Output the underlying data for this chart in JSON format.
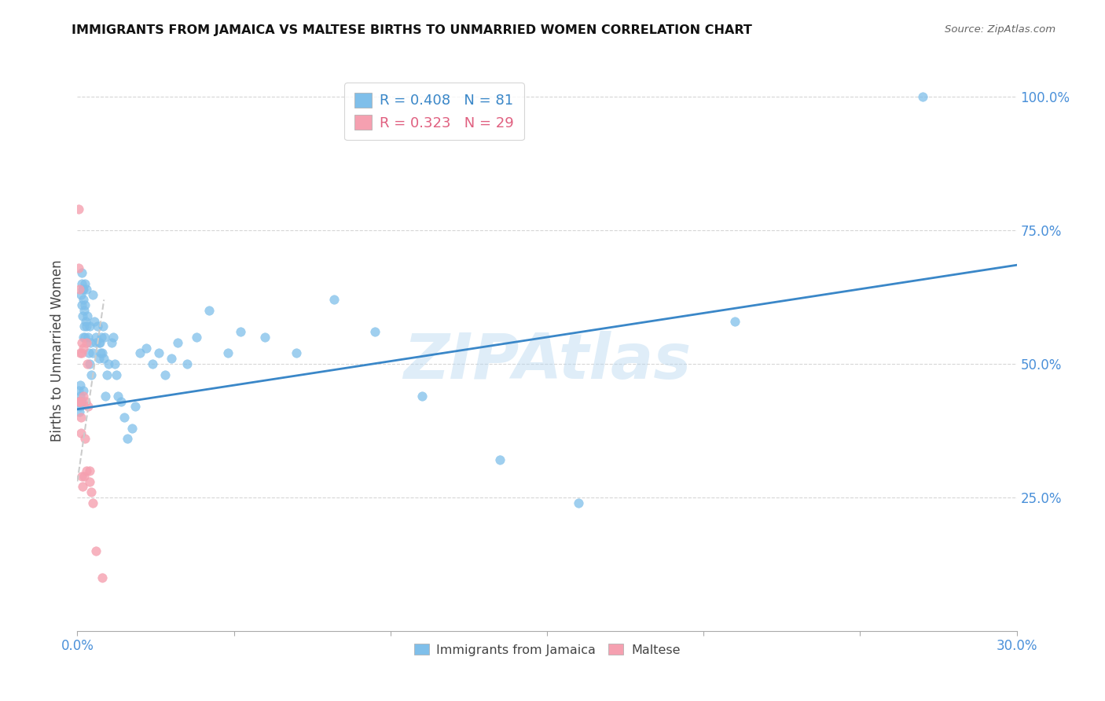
{
  "title": "IMMIGRANTS FROM JAMAICA VS MALTESE BIRTHS TO UNMARRIED WOMEN CORRELATION CHART",
  "source": "Source: ZipAtlas.com",
  "ylabel": "Births to Unmarried Women",
  "ytick_vals": [
    0.25,
    0.5,
    0.75,
    1.0
  ],
  "ytick_labels": [
    "25.0%",
    "50.0%",
    "75.0%",
    "100.0%"
  ],
  "legend_blue_r": "0.408",
  "legend_blue_n": "81",
  "legend_pink_r": "0.323",
  "legend_pink_n": "29",
  "legend_blue_label": "Immigrants from Jamaica",
  "legend_pink_label": "Maltese",
  "blue_color": "#7fbfea",
  "pink_color": "#f5a0b0",
  "blue_line_color": "#3a87c8",
  "pink_line_color": "#e06080",
  "tick_color": "#4a90d9",
  "watermark": "ZIPAtlas",
  "blue_scatter_x": [
    0.0003,
    0.0005,
    0.0007,
    0.0008,
    0.001,
    0.001,
    0.0012,
    0.0013,
    0.0014,
    0.0015,
    0.0015,
    0.0016,
    0.0017,
    0.0018,
    0.0019,
    0.002,
    0.002,
    0.0021,
    0.0022,
    0.0023,
    0.0024,
    0.0025,
    0.0026,
    0.0028,
    0.003,
    0.0032,
    0.0034,
    0.0036,
    0.0038,
    0.004,
    0.0042,
    0.0045,
    0.0048,
    0.005,
    0.0055,
    0.0058,
    0.006,
    0.0065,
    0.0068,
    0.007,
    0.0072,
    0.0075,
    0.0078,
    0.008,
    0.0082,
    0.0085,
    0.0088,
    0.009,
    0.0095,
    0.01,
    0.011,
    0.0115,
    0.012,
    0.0125,
    0.013,
    0.014,
    0.015,
    0.016,
    0.0175,
    0.0185,
    0.02,
    0.022,
    0.024,
    0.026,
    0.028,
    0.03,
    0.032,
    0.035,
    0.038,
    0.042,
    0.048,
    0.052,
    0.06,
    0.07,
    0.082,
    0.095,
    0.11,
    0.135,
    0.16,
    0.21,
    0.27
  ],
  "blue_scatter_y": [
    0.43,
    0.45,
    0.41,
    0.44,
    0.42,
    0.46,
    0.63,
    0.61,
    0.67,
    0.65,
    0.43,
    0.64,
    0.59,
    0.62,
    0.55,
    0.45,
    0.64,
    0.57,
    0.6,
    0.65,
    0.55,
    0.61,
    0.58,
    0.64,
    0.57,
    0.59,
    0.55,
    0.52,
    0.57,
    0.5,
    0.54,
    0.48,
    0.52,
    0.63,
    0.58,
    0.55,
    0.54,
    0.57,
    0.54,
    0.51,
    0.54,
    0.52,
    0.55,
    0.52,
    0.57,
    0.51,
    0.55,
    0.44,
    0.48,
    0.5,
    0.54,
    0.55,
    0.5,
    0.48,
    0.44,
    0.43,
    0.4,
    0.36,
    0.38,
    0.42,
    0.52,
    0.53,
    0.5,
    0.52,
    0.48,
    0.51,
    0.54,
    0.5,
    0.55,
    0.6,
    0.52,
    0.56,
    0.55,
    0.52,
    0.62,
    0.56,
    0.44,
    0.32,
    0.24,
    0.58,
    1.0
  ],
  "pink_scatter_x": [
    0.0003,
    0.0004,
    0.0005,
    0.0006,
    0.0007,
    0.0008,
    0.0009,
    0.001,
    0.0011,
    0.0012,
    0.0013,
    0.0014,
    0.0015,
    0.0016,
    0.0018,
    0.002,
    0.0022,
    0.0024,
    0.0026,
    0.0028,
    0.003,
    0.0032,
    0.0035,
    0.0038,
    0.004,
    0.0045,
    0.005,
    0.006,
    0.008
  ],
  "pink_scatter_y": [
    0.79,
    0.43,
    0.68,
    0.43,
    0.64,
    0.43,
    0.52,
    0.43,
    0.4,
    0.37,
    0.54,
    0.52,
    0.29,
    0.27,
    0.44,
    0.53,
    0.29,
    0.36,
    0.43,
    0.3,
    0.54,
    0.5,
    0.42,
    0.3,
    0.28,
    0.26,
    0.24,
    0.15,
    0.1
  ],
  "blue_line_x": [
    0.0,
    0.3
  ],
  "blue_line_y": [
    0.415,
    0.685
  ],
  "pink_line_x": [
    0.0,
    0.0085
  ],
  "pink_line_y": [
    0.28,
    0.62
  ],
  "xlim": [
    0.0,
    0.3
  ],
  "ylim": [
    0.0,
    1.05
  ],
  "xtick_positions": [
    0.0,
    0.05,
    0.1,
    0.15,
    0.2,
    0.25,
    0.3
  ],
  "xtick_labels": [
    "0.0%",
    "",
    "",
    "",
    "",
    "",
    "30.0%"
  ]
}
